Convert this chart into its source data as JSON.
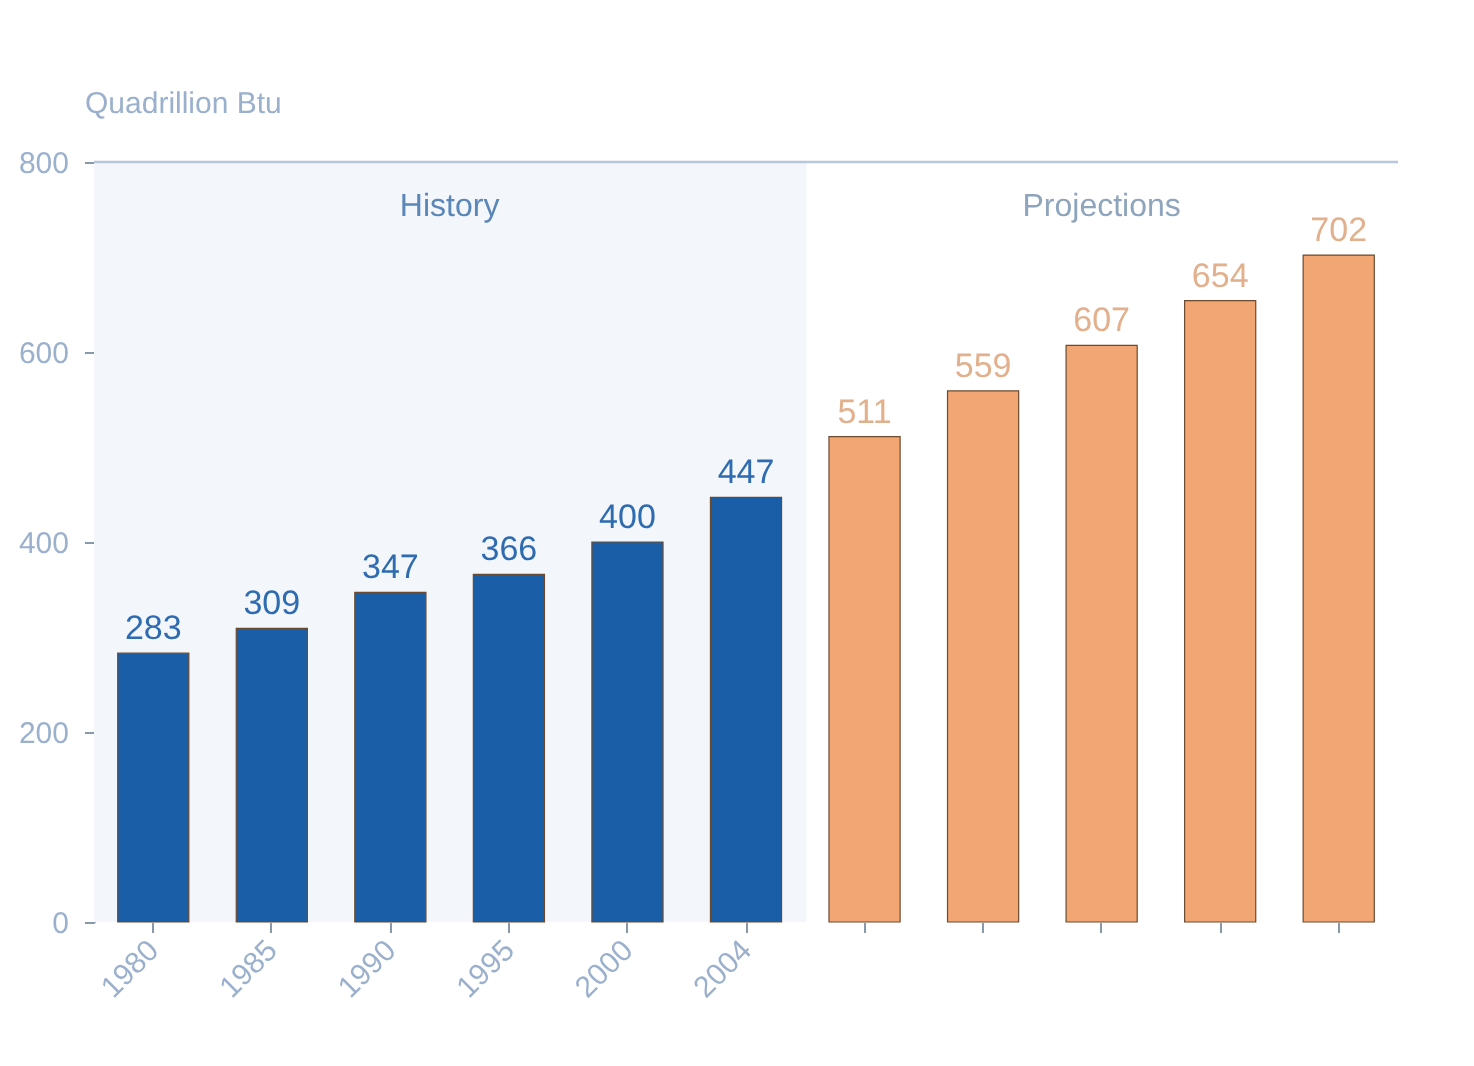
{
  "chart_data": {
    "type": "bar",
    "ylabel": "Quadrillion Btu",
    "categories": [
      "1980",
      "1985",
      "1990",
      "1995",
      "2000",
      "2004",
      null,
      null,
      null,
      null,
      null
    ],
    "values": [
      283,
      309,
      347,
      366,
      400,
      447,
      511,
      559,
      607,
      654,
      702
    ],
    "colors": [
      "#1a5ea8",
      "#1a5ea8",
      "#1a5ea8",
      "#1a5ea8",
      "#1a5ea8",
      "#1a5ea8",
      "#f2a673",
      "#f2a673",
      "#f2a673",
      "#f2a673",
      "#f2a673"
    ],
    "data_labels": true,
    "ylim": [
      0,
      800
    ],
    "yticks": [
      0,
      200,
      400,
      600,
      800
    ],
    "grid": false,
    "bands": [
      {
        "axis": "x",
        "from": "1980",
        "to": "2004",
        "label": "History",
        "color": "#f3f6fa"
      }
    ],
    "annotations": [
      "Projections"
    ]
  }
}
